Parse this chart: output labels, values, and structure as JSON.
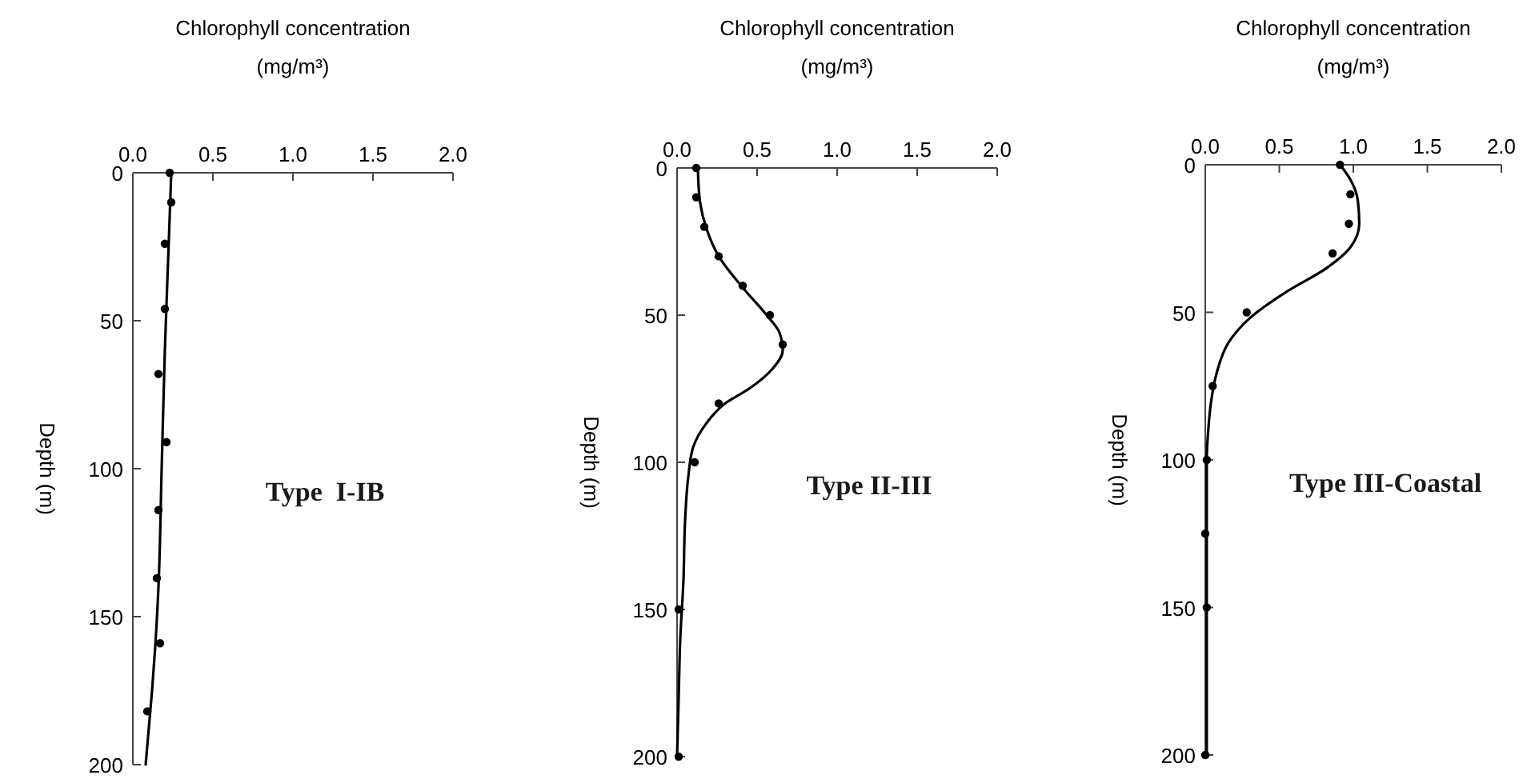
{
  "chart_data": [
    {
      "type": "scatter",
      "xlabel": "Chlorophyll concentration\n(mg/m³)",
      "ylabel": "Depth (m)",
      "xlim": [
        0,
        2
      ],
      "xticks": [
        {
          "value": 0,
          "label": "0.0"
        },
        {
          "value": 0.5,
          "label": "0.5"
        },
        {
          "value": 1,
          "label": "1.0"
        },
        {
          "value": 1.5,
          "label": "1.5"
        },
        {
          "value": 2,
          "label": "2.0"
        }
      ],
      "ylim": [
        200,
        0
      ],
      "yticks": [
        0,
        50,
        100,
        150,
        200
      ],
      "annotations": [
        "Type  I-IB"
      ],
      "series": [
        {
          "marker": "circle",
          "color": "#000000",
          "x": [
            0.23,
            0.24,
            0.2,
            0.2,
            0.16,
            0.21,
            0.16,
            0.15,
            0.17,
            0.09
          ],
          "values": [
            0,
            10,
            24,
            46,
            68,
            91,
            114,
            137,
            159,
            182
          ]
        },
        {
          "type": "line",
          "marker": "none",
          "color": "#000000",
          "x": [
            0.24,
            0.22,
            0.2,
            0.18,
            0.16,
            0.14,
            0.12,
            0.08
          ],
          "values": [
            0,
            30,
            60,
            100,
            140,
            160,
            175,
            200
          ]
        }
      ]
    },
    {
      "type": "scatter",
      "xlabel": "Chlorophyll concentration\n(mg/m³)",
      "ylabel": "Depth (m)",
      "xlim": [
        0,
        2
      ],
      "xticks": [
        {
          "value": 0,
          "label": "0.0"
        },
        {
          "value": 0.5,
          "label": "0.5"
        },
        {
          "value": 1,
          "label": "1.0"
        },
        {
          "value": 1.5,
          "label": "1.5"
        },
        {
          "value": 2,
          "label": "2.0"
        }
      ],
      "ylim": [
        200,
        0
      ],
      "yticks": [
        0,
        50,
        100,
        150,
        200
      ],
      "annotations": [
        "Type II-III"
      ],
      "series": [
        {
          "marker": "circle",
          "color": "#000000",
          "x": [
            0.12,
            0.12,
            0.17,
            0.26,
            0.41,
            0.58,
            0.66,
            0.26,
            0.11,
            0.01,
            0.01
          ],
          "values": [
            0,
            10,
            20,
            30,
            40,
            50,
            60,
            80,
            100,
            150,
            200
          ]
        },
        {
          "type": "line",
          "marker": "none",
          "color": "#000000",
          "x": [
            0.13,
            0.14,
            0.18,
            0.26,
            0.4,
            0.56,
            0.64,
            0.66,
            0.6,
            0.45,
            0.3,
            0.18,
            0.1,
            0.07,
            0.05,
            0.04,
            0.02,
            0.01,
            0
          ],
          "values": [
            0,
            10,
            20,
            30,
            40,
            50,
            56,
            62,
            68,
            75,
            80,
            87,
            95,
            105,
            120,
            140,
            160,
            180,
            200
          ]
        }
      ]
    },
    {
      "type": "scatter",
      "xlabel": "Chlorophyll concentration\n(mg/m³)",
      "ylabel": "Depth (m)",
      "xlim": [
        0,
        2
      ],
      "xticks": [
        {
          "value": 0,
          "label": "0.0"
        },
        {
          "value": 0.5,
          "label": "0.5"
        },
        {
          "value": 1,
          "label": "1.0"
        },
        {
          "value": 1.5,
          "label": "1.5"
        },
        {
          "value": 2,
          "label": "2.0"
        }
      ],
      "ylim": [
        200,
        0
      ],
      "yticks": [
        0,
        50,
        100,
        150,
        200
      ],
      "annotations": [
        "Type III-Coastal"
      ],
      "series": [
        {
          "marker": "circle",
          "color": "#000000",
          "x": [
            0.91,
            0.98,
            0.97,
            0.86,
            0.28,
            0.05,
            0.01,
            0,
            0.01,
            0
          ],
          "values": [
            0,
            10,
            20,
            30,
            50,
            75,
            100,
            125,
            150,
            200
          ]
        },
        {
          "type": "line",
          "marker": "none",
          "color": "#000000",
          "x": [
            0.91,
            0.98,
            1.03,
            1.04,
            0.98,
            0.82,
            0.55,
            0.3,
            0.16,
            0.08,
            0.04,
            0.02,
            0.01,
            0.01,
            0.01
          ],
          "values": [
            0,
            5,
            12,
            20,
            28,
            35,
            43,
            52,
            60,
            70,
            80,
            90,
            100,
            150,
            200
          ]
        }
      ]
    }
  ]
}
